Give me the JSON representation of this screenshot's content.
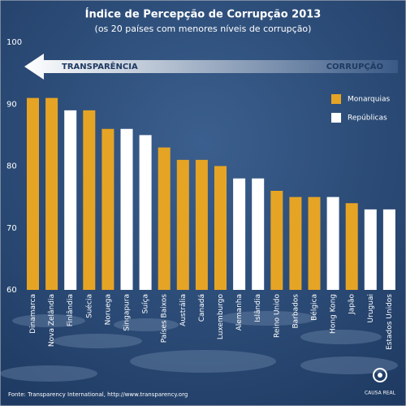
{
  "chart_data": {
    "type": "bar",
    "title": "Índice de Percepção de Corrupção 2013",
    "subtitle": "(os 20 países com menores níveis de corrupção)",
    "annotations": [
      "TRANSPARÊNCIA",
      "CORRUPÇÃO"
    ],
    "categories": [
      "Dinamarca",
      "Nova Zelândia",
      "Finlândia",
      "Suécia",
      "Noruega",
      "Singapura",
      "Suíça",
      "Países Baixos",
      "Austrália",
      "Canadá",
      "Luxemburgo",
      "Alemanha",
      "Islândia",
      "Reino Unido",
      "Barbados",
      "Bélgica",
      "Hong Kong",
      "Japão",
      "Uruguai",
      "Estados Unidos"
    ],
    "series": [
      {
        "name": "Monarquias",
        "color": "#e6a424",
        "values": [
          91,
          91,
          null,
          89,
          86,
          null,
          null,
          83,
          81,
          81,
          80,
          null,
          null,
          76,
          75,
          75,
          null,
          74,
          null,
          null
        ]
      },
      {
        "name": "Repúblicas",
        "color": "#ffffff",
        "values": [
          null,
          null,
          89,
          null,
          null,
          86,
          85,
          null,
          null,
          null,
          null,
          78,
          78,
          null,
          null,
          null,
          75,
          null,
          73,
          73
        ]
      }
    ],
    "ylim": [
      60,
      100
    ],
    "yticks": [
      60,
      70,
      80,
      90,
      100
    ],
    "legend": "upper right",
    "source": "Fonte: Transparency International, http://www.transparency.org",
    "logo": "CAUSA REAL"
  }
}
